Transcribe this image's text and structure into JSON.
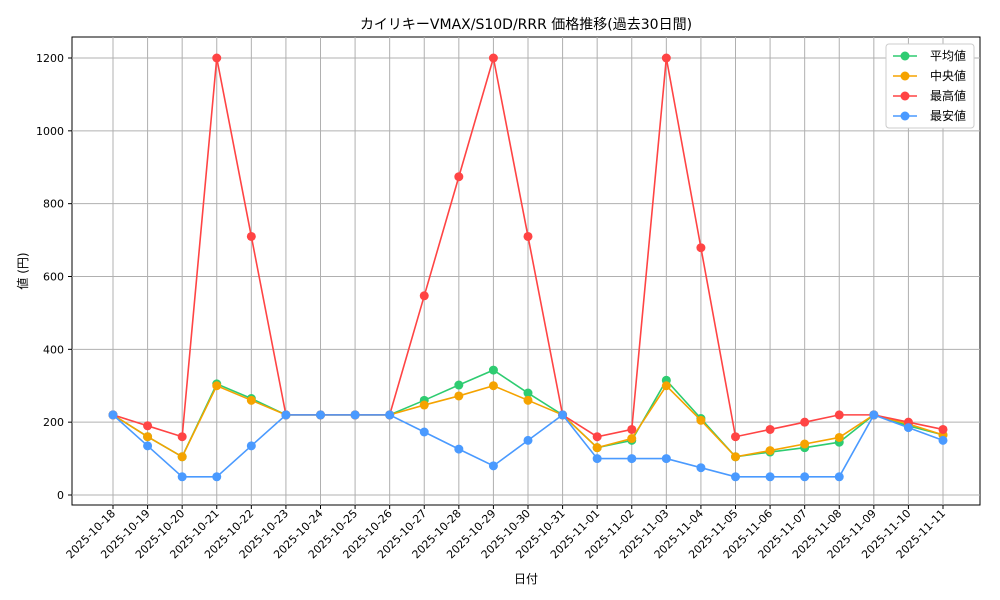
{
  "chart_data": {
    "type": "line",
    "title": "カイリキーVMAX/S10D/RRR 価格推移(過去30日間)",
    "xlabel": "日付",
    "ylabel": "値 (円)",
    "ylim": [
      -30,
      1260
    ],
    "yticks": [
      0,
      200,
      400,
      600,
      800,
      1000,
      1200
    ],
    "grid": true,
    "legend_position": "top-right",
    "x": [
      "2025-10-18",
      "2025-10-19",
      "2025-10-20",
      "2025-10-21",
      "2025-10-22",
      "2025-10-23",
      "2025-10-24",
      "2025-10-25",
      "2025-10-26",
      "2025-10-27",
      "2025-10-28",
      "2025-10-29",
      "2025-10-30",
      "2025-10-31",
      "2025-11-01",
      "2025-11-02",
      "2025-11-03",
      "2025-11-04",
      "2025-11-05",
      "2025-11-06",
      "2025-11-07",
      "2025-11-08",
      "2025-11-09",
      "2025-11-10",
      "2025-11-11"
    ],
    "series": [
      {
        "name": "平均値",
        "color": "#2ecc71",
        "values": [
          220,
          160,
          105,
          305,
          265,
          220,
          220,
          220,
          220,
          260,
          302,
          343,
          280,
          220,
          130,
          150,
          315,
          210,
          105,
          118,
          130,
          145,
          220,
          190,
          165
        ]
      },
      {
        "name": "中央値",
        "color": "#f5a300",
        "values": [
          220,
          160,
          105,
          300,
          260,
          220,
          220,
          220,
          220,
          247,
          272,
          300,
          260,
          220,
          130,
          155,
          300,
          205,
          105,
          122,
          140,
          158,
          220,
          195,
          165
        ]
      },
      {
        "name": "最高値",
        "color": "#ff4444",
        "values": [
          220,
          190,
          160,
          1200,
          710,
          220,
          220,
          220,
          220,
          547,
          874,
          1200,
          710,
          220,
          160,
          180,
          1200,
          679,
          160,
          180,
          200,
          220,
          220,
          200,
          180
        ]
      },
      {
        "name": "最安値",
        "color": "#4a9aff",
        "values": [
          220,
          135,
          50,
          50,
          135,
          220,
          220,
          220,
          220,
          173,
          126,
          80,
          150,
          220,
          100,
          100,
          100,
          75,
          50,
          50,
          50,
          50,
          220,
          185,
          150
        ]
      }
    ]
  }
}
